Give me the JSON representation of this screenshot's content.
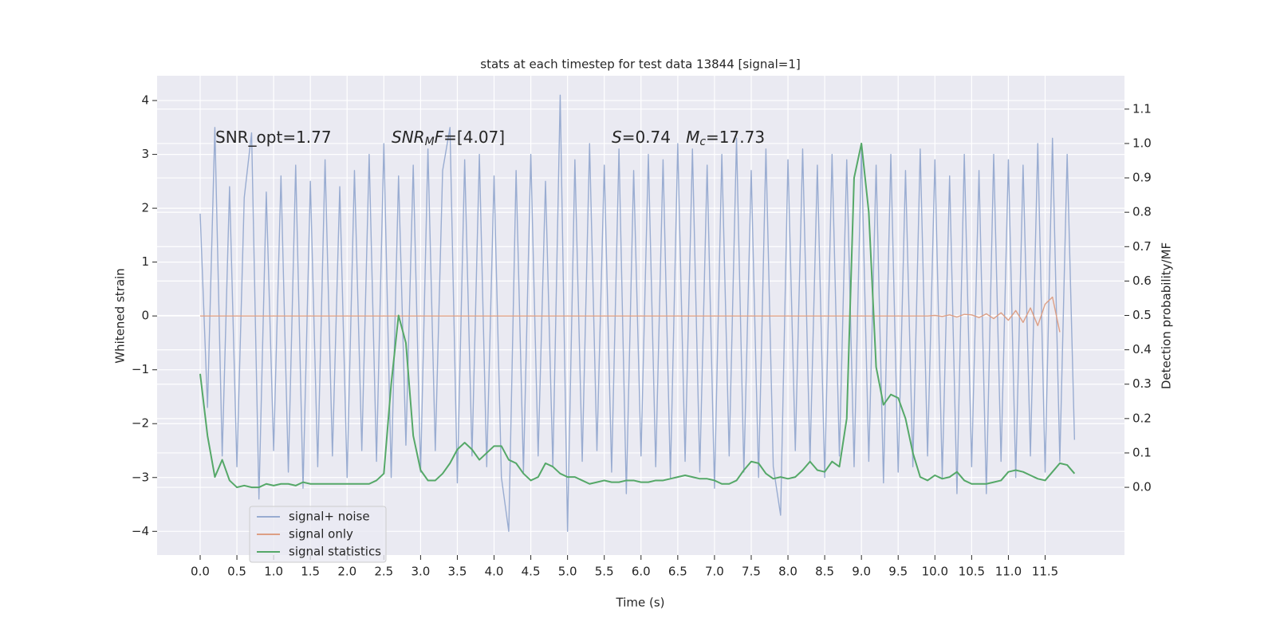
{
  "chart_data": {
    "type": "line",
    "title": "stats at each timestep for test data 13844 [signal=1]",
    "xlabel": "Time (s)",
    "ylabel": "Whitened strain",
    "y2label": "Detection probability/MF",
    "annotations": [
      {
        "parts": [
          {
            "text": "SNR_opt=1.77",
            "style": "normal"
          }
        ]
      },
      {
        "parts": [
          {
            "text": "SNR",
            "style": "italic"
          },
          {
            "text": "M",
            "style": "italic-sub"
          },
          {
            "text": "F",
            "style": "italic"
          },
          {
            "text": "=[4.07]",
            "style": "normal"
          }
        ]
      },
      {
        "parts": [
          {
            "text": "S",
            "style": "italic"
          },
          {
            "text": "=0.74   ",
            "style": "normal"
          },
          {
            "text": "M",
            "style": "italic"
          },
          {
            "text": "c",
            "style": "italic-sub"
          },
          {
            "text": "=17.73",
            "style": "normal"
          }
        ]
      }
    ],
    "x": [
      0,
      0.1,
      0.2,
      0.3,
      0.4,
      0.5,
      0.6,
      0.7,
      0.8,
      0.9,
      1,
      1.1,
      1.2,
      1.3,
      1.4,
      1.5,
      1.6,
      1.7,
      1.8,
      1.9,
      2,
      2.1,
      2.2,
      2.3,
      2.4,
      2.5,
      2.6,
      2.7,
      2.8,
      2.9,
      3,
      3.1,
      3.2,
      3.3,
      3.4,
      3.5,
      3.6,
      3.7,
      3.8,
      3.9,
      4,
      4.1,
      4.2,
      4.3,
      4.4,
      4.5,
      4.6,
      4.7,
      4.8,
      4.9,
      5,
      5.1,
      5.2,
      5.3,
      5.4,
      5.5,
      5.6,
      5.7,
      5.8,
      5.9,
      6,
      6.1,
      6.2,
      6.3,
      6.4,
      6.5,
      6.6,
      6.7,
      6.8,
      6.9,
      7,
      7.1,
      7.2,
      7.3,
      7.4,
      7.5,
      7.6,
      7.7,
      7.8,
      7.9,
      8,
      8.1,
      8.2,
      8.3,
      8.4,
      8.5,
      8.6,
      8.7,
      8.8,
      8.9,
      9,
      9.1,
      9.2,
      9.3,
      9.4,
      9.5,
      9.6,
      9.7,
      9.8,
      9.9,
      10,
      10.1,
      10.2,
      10.3,
      10.4,
      10.5,
      10.6,
      10.7,
      10.8,
      10.9,
      11,
      11.1,
      11.2,
      11.3,
      11.4,
      11.5,
      11.6,
      11.7,
      11.8,
      11.9
    ],
    "series": [
      {
        "name": "signal+ noise",
        "color": "#99acd1",
        "axis": "y",
        "values": [
          1.9,
          -1.7,
          3.5,
          -2.6,
          2.4,
          -2.8,
          2.2,
          3.4,
          -3.4,
          2.3,
          -2.5,
          2.6,
          -2.9,
          2.8,
          -3.2,
          2.5,
          -2.8,
          2.9,
          -2.6,
          2.4,
          -3.0,
          2.7,
          -2.5,
          3.0,
          -2.7,
          3.2,
          -3.0,
          2.6,
          -2.4,
          2.8,
          -2.9,
          3.1,
          -2.5,
          2.7,
          3.5,
          -3.1,
          2.9,
          -2.6,
          3.0,
          -2.8,
          2.6,
          -3.0,
          -4.0,
          2.7,
          -2.9,
          3.0,
          -2.6,
          2.5,
          -2.8,
          4.1,
          -4.0,
          2.9,
          -2.7,
          3.2,
          -2.5,
          2.8,
          -2.9,
          3.1,
          -3.3,
          2.7,
          -2.6,
          3.0,
          -2.8,
          2.9,
          -3.0,
          3.2,
          -2.7,
          3.1,
          -2.9,
          2.8,
          -3.2,
          3.0,
          -2.6,
          3.3,
          -2.9,
          2.7,
          -3.0,
          3.1,
          -2.8,
          -3.7,
          2.9,
          -2.5,
          3.1,
          -2.7,
          2.8,
          -3.0,
          3.0,
          -2.6,
          2.9,
          -2.8,
          3.1,
          -2.7,
          2.8,
          -3.1,
          3.0,
          -2.9,
          2.7,
          -2.8,
          3.1,
          -2.6,
          2.9,
          -3.0,
          2.6,
          -3.3,
          3.0,
          -2.8,
          2.7,
          -3.3,
          3.0,
          -2.7,
          2.9,
          -3.0,
          2.8,
          -2.6,
          3.2,
          -2.9,
          3.3,
          -2.7,
          3.0,
          -2.3
        ]
      },
      {
        "name": "signal only",
        "color": "#dd9f85",
        "axis": "y",
        "values": [
          0,
          0,
          0,
          0,
          0,
          0,
          0,
          0,
          0,
          0,
          0,
          0,
          0,
          0,
          0,
          0,
          0,
          0,
          0,
          0,
          0,
          0,
          0,
          0,
          0,
          0,
          0,
          0,
          0,
          0,
          0,
          0,
          0,
          0,
          0,
          0,
          0,
          0,
          0,
          0,
          0,
          0,
          0,
          0,
          0,
          0,
          0,
          0,
          0,
          0,
          0,
          0,
          0,
          0,
          0,
          0,
          0,
          0,
          0,
          0,
          0,
          0,
          0,
          0,
          0,
          0,
          0,
          0,
          0,
          0,
          0,
          0,
          0,
          0,
          0,
          0,
          0,
          0,
          0,
          0,
          0,
          0,
          0,
          0,
          0,
          0,
          0,
          0,
          0,
          0,
          0,
          0,
          0,
          0,
          0,
          0,
          0,
          0,
          0,
          0,
          0.01,
          -0.01,
          0.02,
          -0.02,
          0.03,
          0.02,
          -0.03,
          0.04,
          -0.05,
          0.06,
          -0.08,
          0.1,
          -0.12,
          0.15,
          -0.18,
          0.22,
          0.35,
          -0.3,
          null,
          null
        ]
      },
      {
        "name": "signal statistics",
        "color": "#55a868",
        "axis": "y2",
        "values": [
          0.33,
          0.15,
          0.03,
          0.08,
          0.02,
          0.0,
          0.005,
          0.0,
          0.0,
          0.01,
          0.005,
          0.01,
          0.01,
          0.005,
          0.015,
          0.01,
          0.01,
          0.01,
          0.01,
          0.01,
          0.01,
          0.01,
          0.01,
          0.01,
          0.02,
          0.04,
          0.3,
          0.5,
          0.42,
          0.15,
          0.05,
          0.02,
          0.02,
          0.04,
          0.07,
          0.11,
          0.13,
          0.11,
          0.08,
          0.1,
          0.12,
          0.12,
          0.08,
          0.07,
          0.04,
          0.02,
          0.03,
          0.07,
          0.06,
          0.04,
          0.03,
          0.03,
          0.02,
          0.01,
          0.015,
          0.02,
          0.015,
          0.015,
          0.02,
          0.02,
          0.015,
          0.015,
          0.02,
          0.02,
          0.025,
          0.03,
          0.035,
          0.03,
          0.025,
          0.025,
          0.02,
          0.01,
          0.01,
          0.02,
          0.05,
          0.075,
          0.07,
          0.04,
          0.025,
          0.03,
          0.025,
          0.03,
          0.05,
          0.075,
          0.05,
          0.045,
          0.075,
          0.06,
          0.2,
          0.9,
          1.0,
          0.8,
          0.35,
          0.24,
          0.27,
          0.26,
          0.2,
          0.1,
          0.03,
          0.02,
          0.035,
          0.025,
          0.03,
          0.045,
          0.02,
          0.01,
          0.01,
          0.01,
          0.015,
          0.02,
          0.045,
          0.05,
          0.045,
          0.035,
          0.025,
          0.02,
          0.045,
          0.07,
          0.065,
          0.04
        ]
      }
    ],
    "xlim": [
      -0.586,
      12.58
    ],
    "ylim": [
      -4.44,
      4.46
    ],
    "y2lim": [
      -0.197,
      1.197
    ],
    "xticks": [
      {
        "value": 0,
        "label": "0.0"
      },
      {
        "value": 0.5,
        "label": "0.5"
      },
      {
        "value": 1,
        "label": "1.0"
      },
      {
        "value": 1.5,
        "label": "1.5"
      },
      {
        "value": 2,
        "label": "2.0"
      },
      {
        "value": 2.5,
        "label": "2.5"
      },
      {
        "value": 3,
        "label": "3.0"
      },
      {
        "value": 3.5,
        "label": "3.5"
      },
      {
        "value": 4,
        "label": "4.0"
      },
      {
        "value": 4.5,
        "label": "4.5"
      },
      {
        "value": 5,
        "label": "5.0"
      },
      {
        "value": 5.5,
        "label": "5.5"
      },
      {
        "value": 6,
        "label": "6.0"
      },
      {
        "value": 6.5,
        "label": "6.5"
      },
      {
        "value": 7,
        "label": "7.0"
      },
      {
        "value": 7.5,
        "label": "7.5"
      },
      {
        "value": 8,
        "label": "8.0"
      },
      {
        "value": 8.5,
        "label": "8.5"
      },
      {
        "value": 9,
        "label": "9.0"
      },
      {
        "value": 9.5,
        "label": "9.5"
      },
      {
        "value": 10,
        "label": "10.0"
      },
      {
        "value": 10.5,
        "label": "10.5"
      },
      {
        "value": 11,
        "label": "11.0"
      },
      {
        "value": 11.5,
        "label": "11.5"
      }
    ],
    "yticks": [
      {
        "value": -4,
        "label": "−4"
      },
      {
        "value": -3,
        "label": "−3"
      },
      {
        "value": -2,
        "label": "−2"
      },
      {
        "value": -1,
        "label": "−1"
      },
      0,
      1,
      2,
      3,
      4
    ],
    "y2ticks": [
      {
        "value": 0,
        "label": "0.0"
      },
      0.1,
      0.2,
      0.3,
      0.4,
      0.5,
      0.6,
      0.7,
      0.8,
      0.9,
      {
        "value": 1,
        "label": "1.0"
      },
      1.1
    ],
    "grid": true,
    "legend": "lower left"
  }
}
